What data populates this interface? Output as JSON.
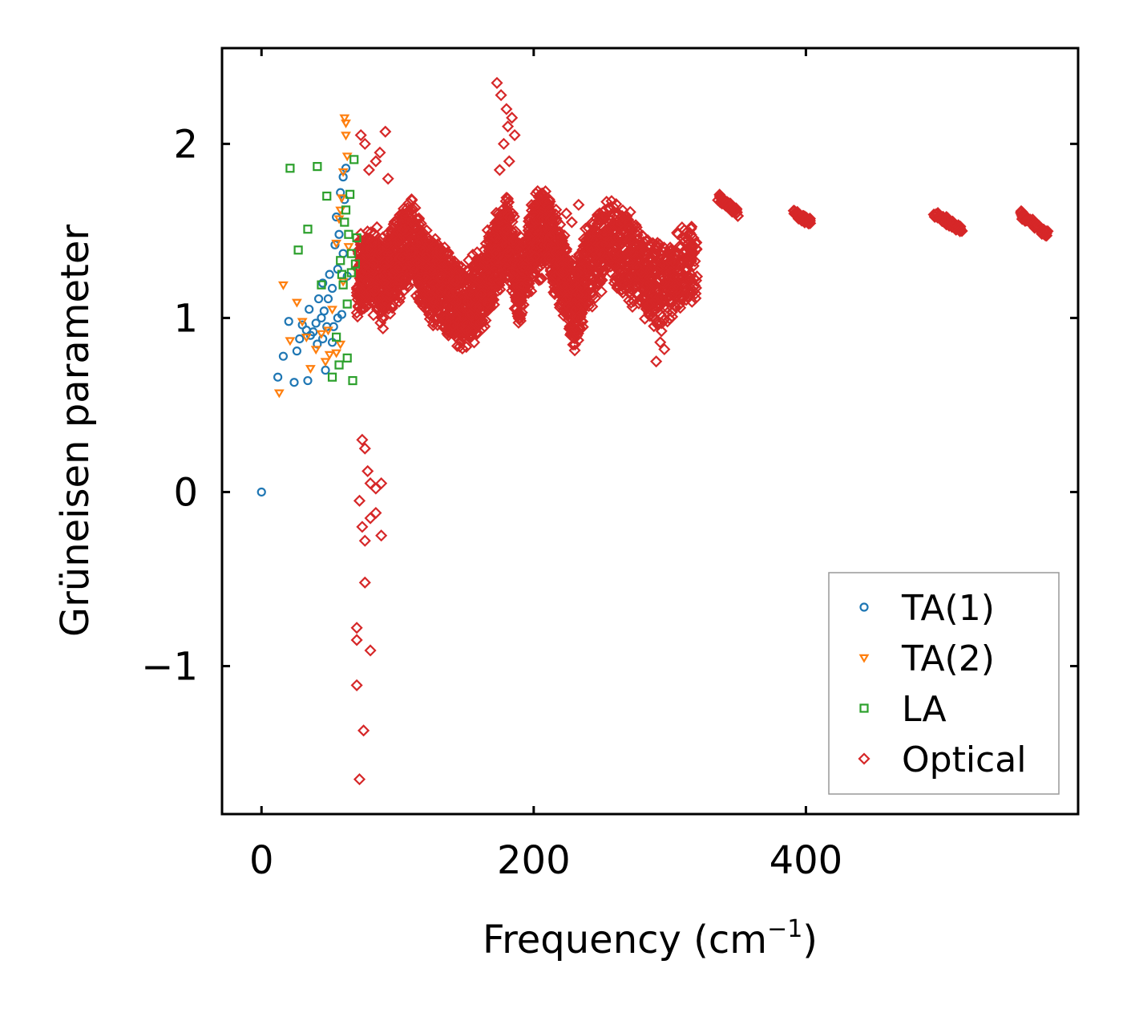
{
  "chart_data": {
    "type": "scatter",
    "xlabel": "Frequency (cm",
    "xlabel_superscript": "−1",
    "xlabel_close": ")",
    "ylabel": "Grüneisen parameter",
    "xlim": [
      -29,
      600
    ],
    "ylim": [
      -1.85,
      2.55
    ],
    "xticks": [
      0,
      200,
      400
    ],
    "xtick_labels": [
      "0",
      "200",
      "400"
    ],
    "yticks": [
      -1,
      0,
      1,
      2
    ],
    "ytick_labels": [
      "−1",
      "0",
      "1",
      "2"
    ],
    "legend_position": "lower-right",
    "series": [
      {
        "name": "TA(1)",
        "marker": "circle",
        "color": "#1f77b4",
        "points": [
          [
            0,
            0
          ],
          [
            12,
            0.66
          ],
          [
            16,
            0.78
          ],
          [
            20,
            0.98
          ],
          [
            24,
            0.63
          ],
          [
            26,
            0.81
          ],
          [
            28,
            0.88
          ],
          [
            30,
            0.96
          ],
          [
            34,
            0.64
          ],
          [
            35,
            1.05
          ],
          [
            38,
            0.92
          ],
          [
            40,
            0.97
          ],
          [
            42,
            1.11
          ],
          [
            44,
            1.0
          ],
          [
            45,
            0.88
          ],
          [
            46,
            1.04
          ],
          [
            47,
            0.7
          ],
          [
            48,
            0.95
          ],
          [
            50,
            1.25
          ],
          [
            52,
            1.17
          ],
          [
            53,
            0.95
          ],
          [
            54,
            1.42
          ],
          [
            55,
            1.58
          ],
          [
            56,
            1.28
          ],
          [
            57,
            1.48
          ],
          [
            58,
            1.72
          ],
          [
            59,
            1.02
          ],
          [
            60,
            1.81
          ],
          [
            61,
            1.68
          ],
          [
            62,
            1.86
          ],
          [
            63,
            1.24
          ],
          [
            52,
            0.86
          ],
          [
            49,
            1.11
          ],
          [
            56,
            1.0
          ],
          [
            60,
            1.37
          ],
          [
            41,
            0.85
          ],
          [
            45,
            1.2
          ],
          [
            33,
            0.93
          ],
          [
            36,
            0.9
          ]
        ]
      },
      {
        "name": "TA(2)",
        "marker": "triangle-down",
        "color": "#ff7f0e",
        "points": [
          [
            13,
            0.57
          ],
          [
            16,
            1.19
          ],
          [
            21,
            0.87
          ],
          [
            26,
            1.09
          ],
          [
            30,
            0.98
          ],
          [
            33,
            0.89
          ],
          [
            36,
            0.71
          ],
          [
            40,
            0.82
          ],
          [
            44,
            0.91
          ],
          [
            47,
            0.75
          ],
          [
            49,
            0.93
          ],
          [
            52,
            1.05
          ],
          [
            55,
            1.43
          ],
          [
            57,
            1.57
          ],
          [
            58,
            0.85
          ],
          [
            59,
            1.69
          ],
          [
            60,
            1.84
          ],
          [
            61,
            2.15
          ],
          [
            62,
            2.05
          ],
          [
            63,
            1.93
          ],
          [
            64,
            1.41
          ],
          [
            62,
            2.12
          ],
          [
            60,
            1.21
          ],
          [
            58,
            1.62
          ],
          [
            55,
            0.8
          ],
          [
            50,
            0.79
          ]
        ]
      },
      {
        "name": "LA",
        "marker": "square",
        "color": "#2ca02c",
        "points": [
          [
            21,
            1.86
          ],
          [
            27,
            1.39
          ],
          [
            34,
            1.51
          ],
          [
            41,
            1.87
          ],
          [
            44,
            1.19
          ],
          [
            48,
            1.7
          ],
          [
            52,
            0.66
          ],
          [
            55,
            0.89
          ],
          [
            57,
            0.73
          ],
          [
            58,
            1.33
          ],
          [
            60,
            1.19
          ],
          [
            61,
            1.55
          ],
          [
            62,
            1.62
          ],
          [
            63,
            1.08
          ],
          [
            64,
            1.48
          ],
          [
            65,
            1.71
          ],
          [
            66,
            1.26
          ],
          [
            67,
            0.64
          ],
          [
            68,
            1.91
          ],
          [
            70,
            1.46
          ],
          [
            69,
            1.31
          ],
          [
            66,
            1.37
          ],
          [
            63,
            0.77
          ],
          [
            59,
            1.25
          ]
        ]
      },
      {
        "name": "Optical",
        "marker": "diamond",
        "color": "#d62728",
        "generated": true,
        "base": [
          [
            70,
            1.25
          ],
          [
            80,
            1.3
          ],
          [
            90,
            1.2
          ],
          [
            100,
            1.35
          ],
          [
            110,
            1.45
          ],
          [
            120,
            1.25
          ],
          [
            130,
            1.2
          ],
          [
            140,
            1.1
          ],
          [
            150,
            1.05
          ],
          [
            160,
            1.15
          ],
          [
            170,
            1.3
          ],
          [
            180,
            1.5
          ],
          [
            190,
            1.2
          ],
          [
            200,
            1.45
          ],
          [
            210,
            1.5
          ],
          [
            220,
            1.3
          ],
          [
            230,
            1.05
          ],
          [
            240,
            1.3
          ],
          [
            255,
            1.45
          ],
          [
            270,
            1.35
          ],
          [
            285,
            1.2
          ],
          [
            300,
            1.2
          ],
          [
            320,
            1.35
          ]
        ],
        "spread": 0.28,
        "extra_points": [
          [
            73,
            2.05
          ],
          [
            76,
            2.0
          ],
          [
            79,
            1.85
          ],
          [
            84,
            1.9
          ],
          [
            87,
            1.95
          ],
          [
            91,
            2.07
          ],
          [
            93,
            1.8
          ],
          [
            74,
            0.3
          ],
          [
            76,
            0.25
          ],
          [
            78,
            0.12
          ],
          [
            80,
            0.05
          ],
          [
            84,
            0.02
          ],
          [
            88,
            0.05
          ],
          [
            72,
            -0.05
          ],
          [
            74,
            -0.2
          ],
          [
            76,
            -0.28
          ],
          [
            80,
            -0.15
          ],
          [
            84,
            -0.12
          ],
          [
            88,
            -0.25
          ],
          [
            76,
            -0.52
          ],
          [
            70,
            -0.78
          ],
          [
            70,
            -0.85
          ],
          [
            80,
            -0.91
          ],
          [
            70,
            -1.11
          ],
          [
            75,
            -1.37
          ],
          [
            72,
            -1.65
          ],
          [
            173,
            2.35
          ],
          [
            176,
            2.28
          ],
          [
            180,
            2.2
          ],
          [
            184,
            2.15
          ],
          [
            178,
            2.0
          ],
          [
            182,
            1.9
          ],
          [
            175,
            1.85
          ],
          [
            181,
            2.1
          ],
          [
            186,
            2.05
          ],
          [
            290,
            0.75
          ],
          [
            296,
            0.82
          ],
          [
            293,
            0.86
          ],
          [
            224,
            1.6
          ],
          [
            228,
            1.55
          ],
          [
            233,
            1.65
          ]
        ],
        "isolated_clusters": [
          [
            [
              336,
              1.69
            ],
            [
              350,
              1.6
            ]
          ],
          [
            [
              392,
              1.6
            ],
            [
              403,
              1.55
            ]
          ],
          [
            [
              495,
              1.6
            ],
            [
              515,
              1.5
            ]
          ],
          [
            [
              557,
              1.6
            ],
            [
              578,
              1.48
            ]
          ]
        ]
      }
    ]
  }
}
